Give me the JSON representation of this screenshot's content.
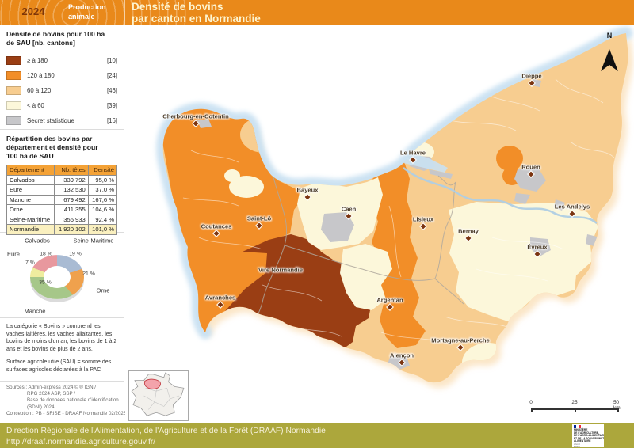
{
  "header": {
    "year": "2024",
    "category_line1": "Production",
    "category_line2": "animale",
    "title_line1": "Densité de bovins",
    "title_line2": "par canton en Normandie"
  },
  "colors": {
    "class_ge180": "#9A3E14",
    "class_120_180": "#F28E28",
    "class_60_120": "#F7CD90",
    "class_lt60": "#FCF7DA",
    "secret": "#C7C7CA",
    "header_bg": "#E9891A",
    "footer_bg": "#ACA73C",
    "sea": "#C9E1F2",
    "table_header_bg": "#F4A236",
    "total_row_bg": "#FAF0BF"
  },
  "legend": {
    "title_line1": "Densité de bovins pour 100 ha",
    "title_line2": "de SAU [nb. cantons]",
    "items": [
      {
        "label": "≥ à 180",
        "count": "[10]",
        "color_key": "class_ge180"
      },
      {
        "label": "120 à 180",
        "count": "[24]",
        "color_key": "class_120_180"
      },
      {
        "label": "60 à 120",
        "count": "[46]",
        "color_key": "class_60_120"
      },
      {
        "label": "< à 60",
        "count": "[39]",
        "color_key": "class_lt60"
      },
      {
        "label": "Secret statistique",
        "count": "[16]",
        "color_key": "secret"
      }
    ]
  },
  "table": {
    "title_line1": "Répartition des bovins par",
    "title_line2": "département et densité pour",
    "title_line3": "100 ha de SAU",
    "headers": [
      "Département",
      "Nb. têtes",
      "Densité"
    ],
    "rows": [
      [
        "Calvados",
        "339 792",
        "95,0 %"
      ],
      [
        "Eure",
        "132 530",
        "37,0 %"
      ],
      [
        "Manche",
        "679 492",
        "167,6 %"
      ],
      [
        "Orne",
        "411 355",
        "104,6 %"
      ],
      [
        "Seine-Maritime",
        "356 933",
        "92,4 %"
      ]
    ],
    "total_row": [
      "Normandie",
      "1 920 102",
      "101,0 %"
    ]
  },
  "chart_data": {
    "type": "pie",
    "title": "Répartition des bovins par département",
    "unit": "%",
    "legend_position": "around",
    "series": [
      {
        "name": "Seine-Maritime",
        "value": 19,
        "color": "#A9BBD3"
      },
      {
        "name": "Orne",
        "value": 21,
        "color": "#EFA14D"
      },
      {
        "name": "Manche",
        "value": 35,
        "color": "#A6C789"
      },
      {
        "name": "Eure",
        "value": 7,
        "color": "#EFED9F"
      },
      {
        "name": "Calvados",
        "value": 18,
        "color": "#E8989E"
      }
    ]
  },
  "notes": {
    "para1": "La catégorie « Bovins » comprend les vaches laitières, les vaches allaitantes, les bovins de moins d'un an, les bovins de 1 à 2 ans et les bovins de plus de 2 ans.",
    "para2": "Surface agricole utile (SAU) = somme des surfaces agricoles déclarées à la PAC"
  },
  "sources": {
    "l1": "Sources : Admin-express 2024 © ® IGN /",
    "l2": "RPG 2024 ASP, SSP /",
    "l3": "Base de données nationale d'identification",
    "l4": "(BDNI) 2024",
    "l5": "Conception : PB - SRISE - DRAAF Normandie 02/2026"
  },
  "map": {
    "north_label": "N",
    "scale": {
      "start": "0",
      "mid": "25",
      "end": "50 km"
    },
    "cities": [
      "Cherbourg-en-Cotentin",
      "Dieppe",
      "Le Havre",
      "Rouen",
      "Bayeux",
      "Caen",
      "Saint-Lô",
      "Lisieux",
      "Les Andelys",
      "Coutances",
      "Bernay",
      "Évreux",
      "Vire Normandie",
      "Avranches",
      "Argentan",
      "Mortagne-au-Perche",
      "Alençon"
    ]
  },
  "footer": {
    "line1": "Direction Régionale de l'Alimentation, de l'Agriculture et de la Forêt (DRAAF) Normandie",
    "line2": "http://draaf.normandie.agriculture.gouv.fr/",
    "ministry": [
      "MINISTÈRE",
      "DE L'AGRICULTURE,",
      "DE L'AGRO-ALIMENTAIRE",
      "ET DE LA SOUVERAINETÉ",
      "ALIMENTAIRE"
    ],
    "motto": [
      "Liberté",
      "Égalité",
      "Fraternité"
    ]
  }
}
